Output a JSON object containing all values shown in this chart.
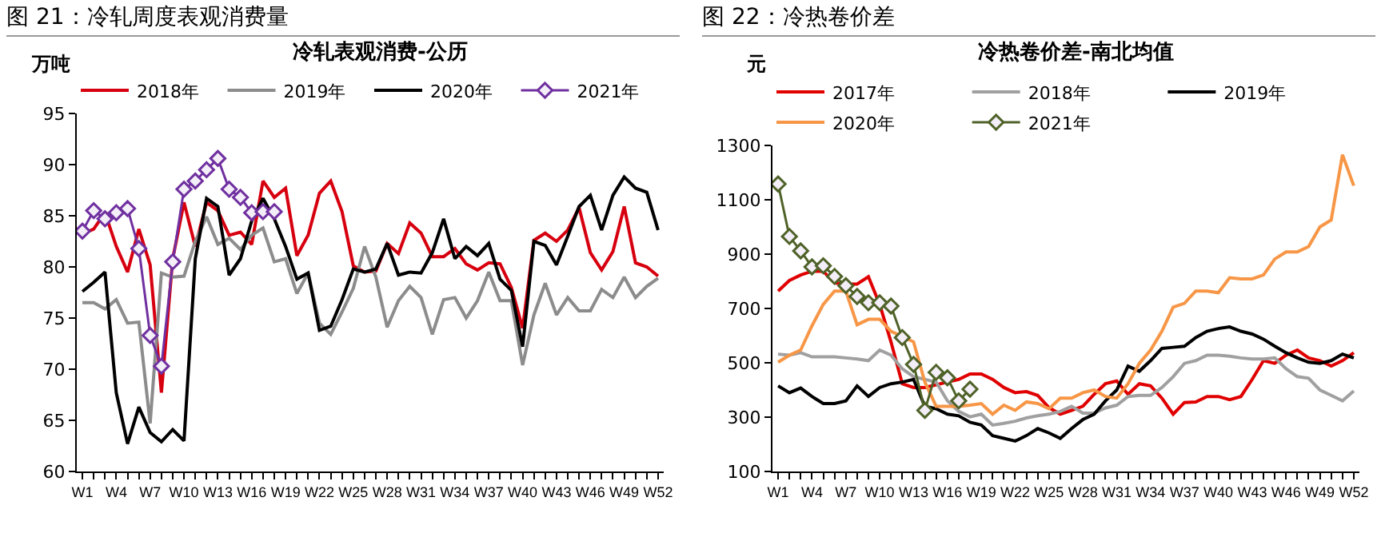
{
  "chart_data": [
    {
      "type": "line",
      "title": "图 21：冷轧周度表观消费量",
      "subtitle": "冷轧表观消费-公历",
      "ylabel": "万吨",
      "categories": [
        "W1",
        null,
        null,
        "W4",
        null,
        null,
        "W7",
        null,
        null,
        "W10",
        null,
        null,
        "W13",
        null,
        null,
        "W16",
        null,
        null,
        "W19",
        null,
        null,
        "W22",
        null,
        null,
        "W25",
        null,
        null,
        "W28",
        null,
        null,
        "W31",
        null,
        null,
        "W34",
        null,
        null,
        "W37",
        null,
        null,
        "W40",
        null,
        null,
        "W43",
        null,
        null,
        "W46",
        null,
        null,
        "W49",
        null,
        null,
        "W52"
      ],
      "ylim": [
        60,
        95
      ],
      "yticks": [
        60,
        65,
        70,
        75,
        80,
        85,
        90,
        95
      ],
      "grid": false,
      "legend": "top",
      "series": [
        {
          "name": "2018年",
          "color": "#d7000f",
          "marker": "none",
          "values": [
            83.2,
            83.7,
            85.3,
            82,
            79.5,
            83.7,
            80.2,
            67.7,
            80.8,
            86.3,
            82,
            86.3,
            85.5,
            83.1,
            83.4,
            82.2,
            88.4,
            86.8,
            87.7,
            81.1,
            83.1,
            87.2,
            88.4,
            85.4,
            80.1,
            79.5,
            79.6,
            82.3,
            81.3,
            84.3,
            83.3,
            81,
            81,
            81.8,
            80.3,
            79.7,
            80.4,
            80.3,
            78,
            74,
            82.6,
            83.3,
            82.5,
            83.6,
            85.8,
            81.4,
            79.7,
            81.5,
            85.9,
            80.4,
            80,
            79.1
          ]
        },
        {
          "name": "2019年",
          "color": "#8c8c8c",
          "marker": "none",
          "values": [
            76.5,
            76.5,
            75.9,
            76.8,
            74.5,
            74.6,
            64.7,
            79.4,
            79,
            79.1,
            82.5,
            84.9,
            82.2,
            82.8,
            81.7,
            83.1,
            83.8,
            80.5,
            80.8,
            77.4,
            79.4,
            74.5,
            73.4,
            75.6,
            77.9,
            82,
            79,
            74.1,
            76.7,
            78.1,
            77,
            73.4,
            76.8,
            77,
            75,
            76.7,
            79.5,
            76.7,
            76.7,
            70.4,
            75.3,
            78.4,
            75.3,
            77,
            75.7,
            75.7,
            77.8,
            77,
            79,
            77,
            78.1,
            78.9
          ]
        },
        {
          "name": "2020年",
          "color": "#000000",
          "marker": "none",
          "values": [
            77.6,
            78.5,
            79.5,
            67.7,
            62.7,
            66.3,
            63.8,
            62.9,
            64.1,
            63,
            80.8,
            86.7,
            85.9,
            79.2,
            80.8,
            84.5,
            86.7,
            84.7,
            82,
            78.8,
            79.4,
            73.8,
            74.2,
            76.8,
            79.8,
            79.5,
            79.8,
            82.3,
            79.2,
            79.5,
            79.4,
            81.4,
            84.7,
            80.8,
            82,
            81.1,
            82.3,
            78.8,
            77.7,
            72.2,
            82.5,
            82.1,
            80.2,
            83,
            85.9,
            87,
            83.6,
            87,
            88.8,
            87.7,
            87.3,
            83.6
          ]
        },
        {
          "name": "2021年",
          "color": "#7030a0",
          "marker": "diamond",
          "values": [
            83.5,
            85.5,
            84.7,
            85.3,
            85.7,
            81.8,
            73.3,
            70.3,
            80.5,
            87.6,
            88.4,
            89.5,
            90.6,
            87.6,
            86.8,
            85.3,
            85.4,
            85.4,
            null,
            null,
            null,
            null,
            null,
            null,
            null,
            null,
            null,
            null,
            null,
            null,
            null,
            null,
            null,
            null,
            null,
            null,
            null,
            null,
            null,
            null,
            null,
            null,
            null,
            null,
            null,
            null,
            null,
            null,
            null,
            null,
            null,
            null
          ]
        }
      ]
    },
    {
      "type": "line",
      "title": "图 22：冷热卷价差",
      "subtitle": "冷热卷价差-南北均值",
      "ylabel": "元",
      "categories": [
        "W1",
        null,
        null,
        "W4",
        null,
        null,
        "W7",
        null,
        null,
        "W10",
        null,
        null,
        "W13",
        null,
        null,
        "W16",
        null,
        null,
        "W19",
        null,
        null,
        "W22",
        null,
        null,
        "W25",
        null,
        null,
        "W28",
        null,
        null,
        "W31",
        null,
        null,
        "W34",
        null,
        null,
        "W37",
        null,
        null,
        "W40",
        null,
        null,
        "W43",
        null,
        null,
        "W46",
        null,
        null,
        "W49",
        null,
        null,
        "W52"
      ],
      "ylim": [
        100,
        1300
      ],
      "yticks": [
        100,
        300,
        500,
        700,
        900,
        1100,
        1300
      ],
      "grid": false,
      "legend": "top",
      "series": [
        {
          "name": "2017年",
          "color": "#e00000",
          "marker": "none",
          "values": [
            764,
            803,
            823,
            837,
            837,
            794,
            790,
            790,
            817,
            715,
            577,
            423,
            409,
            409,
            419,
            429,
            439,
            459,
            459,
            439,
            409,
            390,
            394,
            380,
            335,
            311,
            325,
            340,
            384,
            423,
            433,
            384,
            423,
            415,
            370,
            311,
            354,
            356,
            376,
            376,
            364,
            376,
            439,
            508,
            498,
            528,
            547,
            518,
            508,
            488,
            508,
            537
          ]
        },
        {
          "name": "2018年",
          "color": "#a0a0a0",
          "marker": "none",
          "values": [
            532,
            528,
            537,
            522,
            522,
            522,
            518,
            514,
            508,
            547,
            528,
            478,
            449,
            439,
            429,
            360,
            321,
            301,
            311,
            271,
            277,
            285,
            297,
            305,
            311,
            321,
            340,
            315,
            315,
            334,
            344,
            376,
            380,
            380,
            409,
            449,
            498,
            508,
            528,
            528,
            524,
            518,
            514,
            514,
            518,
            478,
            449,
            443,
            400,
            380,
            360,
            396
          ]
        },
        {
          "name": "2019年",
          "color": "#000000",
          "marker": "none",
          "values": [
            415,
            390,
            407,
            376,
            350,
            350,
            360,
            415,
            376,
            409,
            423,
            429,
            439,
            340,
            331,
            311,
            305,
            281,
            271,
            232,
            222,
            212,
            232,
            258,
            242,
            222,
            258,
            291,
            311,
            360,
            400,
            488,
            469,
            508,
            553,
            557,
            561,
            593,
            616,
            626,
            632,
            616,
            606,
            587,
            561,
            537,
            518,
            502,
            498,
            508,
            532,
            518
          ]
        },
        {
          "name": "2020年",
          "color": "#f79646",
          "marker": "none",
          "values": [
            502,
            528,
            547,
            636,
            715,
            764,
            764,
            640,
            660,
            660,
            616,
            597,
            577,
            429,
            340,
            340,
            340,
            344,
            350,
            311,
            344,
            325,
            356,
            350,
            331,
            370,
            370,
            390,
            400,
            376,
            370,
            423,
            498,
            547,
            616,
            705,
            719,
            764,
            764,
            758,
            813,
            809,
            809,
            823,
            882,
            908,
            908,
            928,
            1000,
            1026,
            1266,
            1152
          ]
        },
        {
          "name": "2021年",
          "color": "#4f6228",
          "marker": "diamond",
          "values": [
            1158,
            965,
            912,
            853,
            857,
            818,
            784,
            744,
            721,
            721,
            709,
            593,
            494,
            325,
            465,
            445,
            360,
            403,
            null,
            null,
            null,
            null,
            null,
            null,
            null,
            null,
            null,
            null,
            null,
            null,
            null,
            null,
            null,
            null,
            null,
            null,
            null,
            null,
            null,
            null,
            null,
            null,
            null,
            null,
            null,
            null,
            null,
            null,
            null,
            null,
            null,
            null
          ]
        }
      ]
    }
  ]
}
